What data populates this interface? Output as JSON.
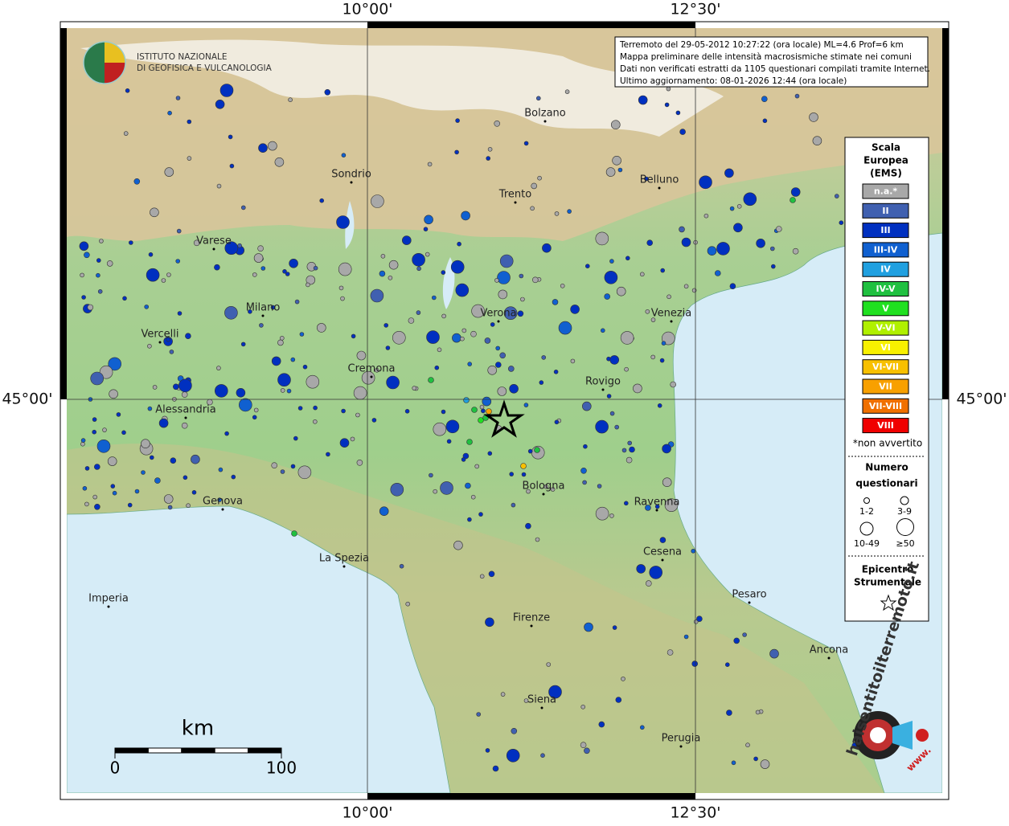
{
  "map": {
    "header": [
      "Terremoto del 29-05-2012 10:27:22 (ora locale) ML=4.6 Prof=6 km",
      "Mappa preliminare delle intensità macrosismiche stimate nei comuni",
      "Dati non verificati estratti da 1105 questionari compilati tramite Internet.",
      "Ultimo aggiornamento: 08-01-2026 12:44 (ora locale)"
    ],
    "logo": [
      "ISTITUTO NAZIONALE",
      "DI GEOFISICA E VULCANOLOGIA"
    ],
    "lon_labels_top": [
      "10°00'",
      "12°30'"
    ],
    "lon_labels_bottom": [
      "10°00'",
      "12°30'"
    ],
    "lat_labels": [
      "45°00'",
      "45°00'"
    ],
    "cities": [
      "Bolzano",
      "Sondrio",
      "Trento",
      "Belluno",
      "Varese",
      "Milano",
      "Verona",
      "Venezia",
      "Vercelli",
      "Cremona",
      "Rovigo",
      "Alessandria",
      "Bologna",
      "Ravenna",
      "Genova",
      "Cesena",
      "La Spezia",
      "Pesaro",
      "Imperia",
      "Firenze",
      "Ancona",
      "Siena",
      "Perugia"
    ],
    "legend": {
      "title": [
        "Scala",
        "Europea",
        "(EMS)"
      ],
      "classes": [
        {
          "label": "n.a.*",
          "color": "#a8a8a8"
        },
        {
          "label": "II",
          "color": "#4060b0"
        },
        {
          "label": "III",
          "color": "#0030c0"
        },
        {
          "label": "III-IV",
          "color": "#1060d0"
        },
        {
          "label": "IV",
          "color": "#20a0e0"
        },
        {
          "label": "IV-V",
          "color": "#20c040"
        },
        {
          "label": "V",
          "color": "#20e020"
        },
        {
          "label": "V-VI",
          "color": "#b0f000"
        },
        {
          "label": "VI",
          "color": "#f8f000"
        },
        {
          "label": "VI-VII",
          "color": "#f8c000"
        },
        {
          "label": "VII",
          "color": "#f8a000"
        },
        {
          "label": "VII-VIII",
          "color": "#f07000"
        },
        {
          "label": "VIII",
          "color": "#f00000"
        }
      ],
      "note": "*non avvertito",
      "size_title": [
        "Numero",
        "questionari"
      ],
      "sizes": [
        "1-2",
        "3-9",
        "10-49",
        "≥50"
      ],
      "epicenter_title": [
        "Epicentro",
        "Strumentale"
      ]
    },
    "scale": {
      "unit": "km",
      "ticks": [
        0,
        100
      ]
    },
    "site_logo": [
      "haisentitoilterremoto.it",
      "www."
    ]
  }
}
